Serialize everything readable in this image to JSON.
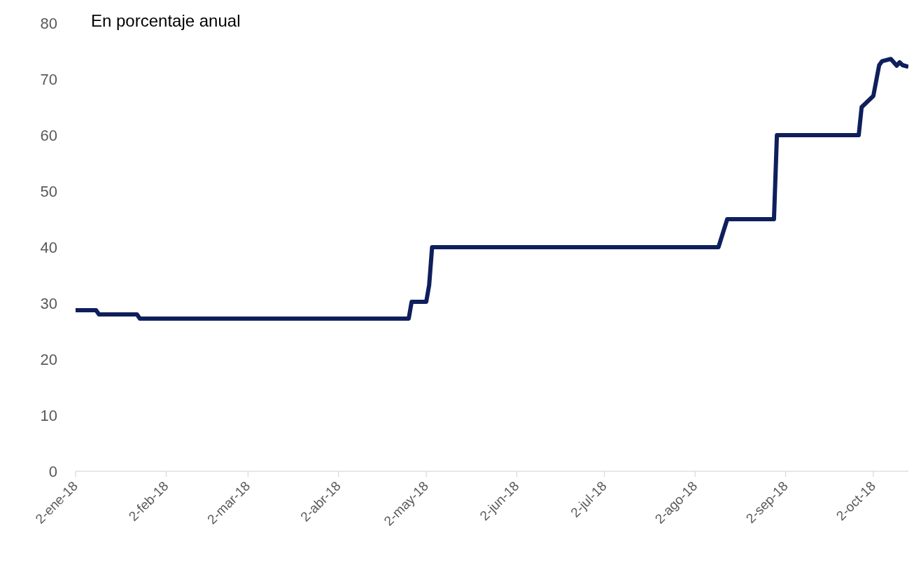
{
  "chart_data": {
    "type": "line",
    "title": "En porcentaje anual",
    "x": [
      "2018-01-02",
      "2018-01-09",
      "2018-01-10",
      "2018-01-23",
      "2018-01-24",
      "2018-04-26",
      "2018-04-27",
      "2018-05-02",
      "2018-05-03",
      "2018-05-04",
      "2018-08-10",
      "2018-08-13",
      "2018-08-29",
      "2018-08-30",
      "2018-09-27",
      "2018-09-28",
      "2018-10-01",
      "2018-10-02",
      "2018-10-04",
      "2018-10-05",
      "2018-10-08",
      "2018-10-10",
      "2018-10-11",
      "2018-10-12",
      "2018-10-14"
    ],
    "series": [
      {
        "color": "#0f1f5c",
        "values": [
          28.75,
          28.75,
          28,
          28,
          27.25,
          27.25,
          30.25,
          30.25,
          33.25,
          40,
          40,
          45,
          45,
          60,
          60,
          65,
          66.5,
          67,
          72.5,
          73.2,
          73.6,
          72.4,
          73,
          72.5,
          72.2
        ]
      }
    ],
    "xlim": [
      "2018-01-02",
      "2018-10-14"
    ],
    "xticks": [
      {
        "value": "2018-01-02",
        "label": "2-ene-18"
      },
      {
        "value": "2018-02-02",
        "label": "2-feb-18"
      },
      {
        "value": "2018-03-02",
        "label": "2-mar-18"
      },
      {
        "value": "2018-04-02",
        "label": "2-abr-18"
      },
      {
        "value": "2018-05-02",
        "label": "2-may-18"
      },
      {
        "value": "2018-06-02",
        "label": "2-jun-18"
      },
      {
        "value": "2018-07-02",
        "label": "2-jul-18"
      },
      {
        "value": "2018-08-02",
        "label": "2-ago-18"
      },
      {
        "value": "2018-09-02",
        "label": "2-sep-18"
      },
      {
        "value": "2018-10-02",
        "label": "2-oct-18"
      }
    ],
    "ylim": [
      0,
      80
    ],
    "yticks": [
      0,
      10,
      20,
      30,
      40,
      50,
      60,
      70,
      80
    ],
    "grid": false,
    "legend": false,
    "marker": "none",
    "line_style": "solid"
  }
}
